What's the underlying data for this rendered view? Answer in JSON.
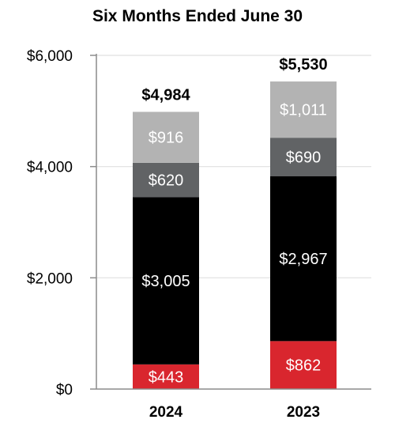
{
  "chart_data": {
    "type": "bar",
    "stacked": true,
    "title": "Six Months Ended June 30",
    "categories": [
      "2024",
      "2023"
    ],
    "yticks": [
      "$0",
      "$2,000",
      "$4,000",
      "$6,000"
    ],
    "ylim": [
      0,
      6000
    ],
    "grid": true,
    "series": [
      {
        "values": [
          443,
          862
        ],
        "labels": [
          "$443",
          "$862"
        ],
        "color": "#d9262e"
      },
      {
        "values": [
          3005,
          2967
        ],
        "labels": [
          "$3,005",
          "$2,967"
        ],
        "color": "#000000"
      },
      {
        "values": [
          620,
          690
        ],
        "labels": [
          "$620",
          "$690"
        ],
        "color": "#616365"
      },
      {
        "values": [
          916,
          1011
        ],
        "labels": [
          "$916",
          "$1,011"
        ],
        "color": "#b3b3b3"
      }
    ],
    "totals": [
      4984,
      5530
    ],
    "total_labels": [
      "$4,984",
      "$5,530"
    ]
  }
}
